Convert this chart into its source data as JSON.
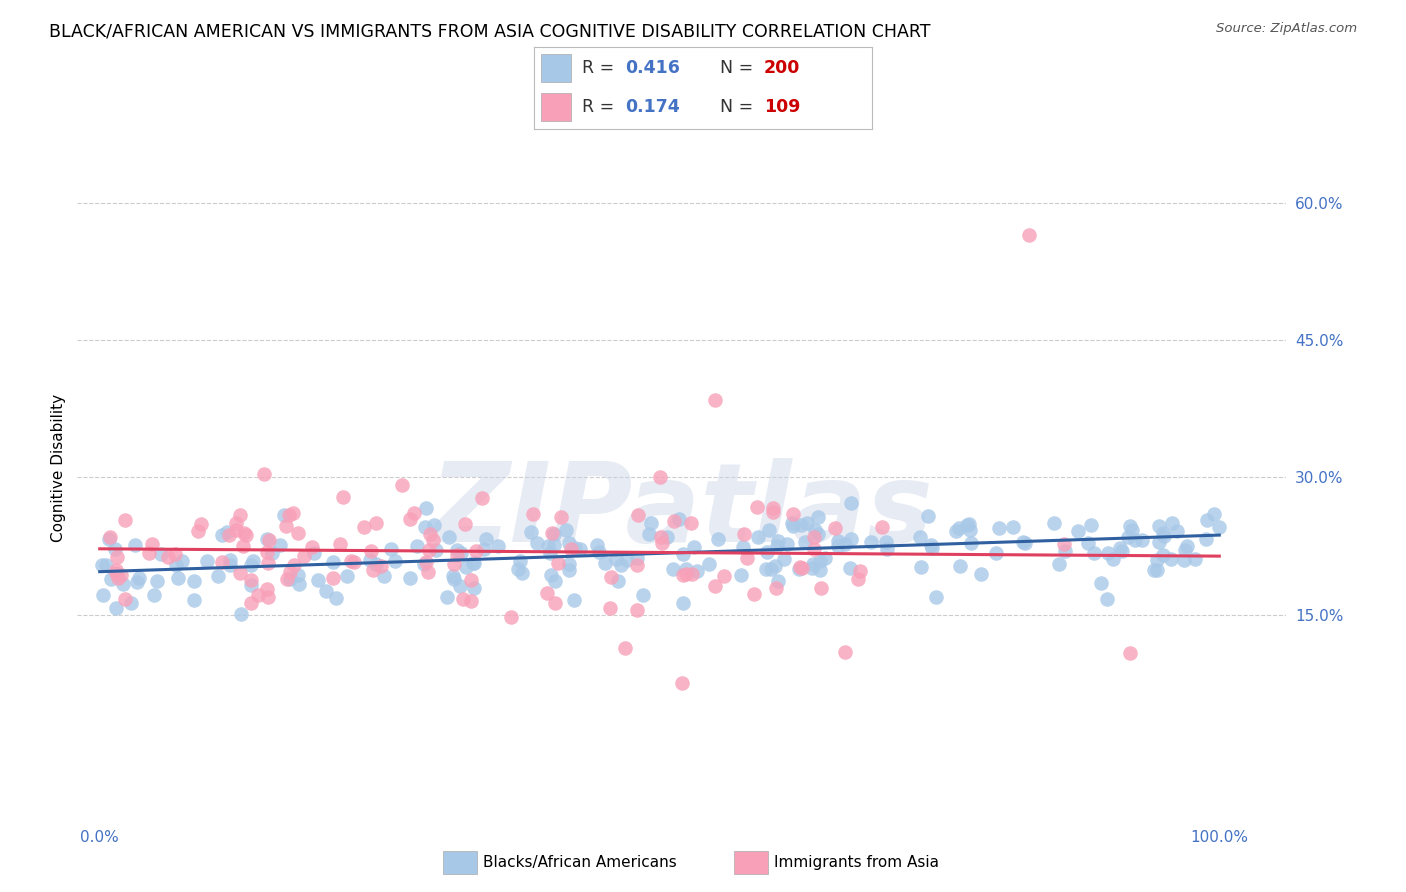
{
  "title": "BLACK/AFRICAN AMERICAN VS IMMIGRANTS FROM ASIA COGNITIVE DISABILITY CORRELATION CHART",
  "source": "Source: ZipAtlas.com",
  "ylabel": "Cognitive Disability",
  "watermark": "ZIPatlas",
  "blue_R": 0.416,
  "blue_N": 200,
  "pink_R": 0.174,
  "pink_N": 109,
  "blue_color": "#a8c8e8",
  "blue_line_color": "#3060a0",
  "pink_color": "#f8a0b8",
  "pink_line_color": "#e04060",
  "blue_label": "Blacks/African Americans",
  "pink_label": "Immigrants from Asia",
  "axis_color": "#4472c4",
  "legend_N_color": "#cc0000",
  "ytick_vals": [
    0.15,
    0.3,
    0.45,
    0.6
  ],
  "ytick_labels": [
    "15.0%",
    "30.0%",
    "45.0%",
    "60.0%"
  ],
  "xtick_labels": [
    "0.0%",
    "100.0%"
  ],
  "xlim": [
    -0.02,
    1.06
  ],
  "ylim": [
    -0.08,
    0.7
  ],
  "background_color": "#ffffff",
  "grid_color": "#cccccc",
  "title_fontsize": 12.5,
  "axis_label_fontsize": 11,
  "tick_fontsize": 11,
  "blue_intercept": 0.197,
  "blue_slope": 0.04,
  "pink_intercept": 0.222,
  "pink_slope": -0.008
}
